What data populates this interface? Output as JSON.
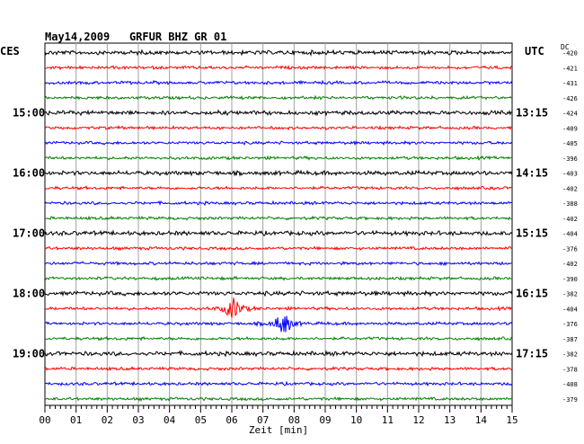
{
  "header": {
    "date": "May14,2009",
    "station": "GRFUR BHZ GR 01"
  },
  "left_tz": "CES",
  "right_tz": "UTC",
  "dc_label": "DC",
  "chart_data": {
    "type": "line",
    "title": "May14,2009   GRFUR BHZ GR 01",
    "xlabel": "Zeit [min]",
    "x_ticks": [
      "00",
      "01",
      "02",
      "03",
      "04",
      "05",
      "06",
      "07",
      "08",
      "09",
      "10",
      "11",
      "12",
      "13",
      "14",
      "15"
    ],
    "xlim": [
      0,
      15
    ],
    "grid": true,
    "trace_colors": [
      "#000000",
      "#ff0000",
      "#0000ff",
      "#008000"
    ],
    "left_time_labels": [
      "15:00",
      "16:00",
      "17:00",
      "18:00",
      "19:00"
    ],
    "right_time_labels": [
      "13:15",
      "14:15",
      "15:15",
      "16:15",
      "17:15"
    ],
    "dc_offsets": [
      "-420",
      "-421",
      "-431",
      "-426",
      "-424",
      "-409",
      "-405",
      "-396",
      "-403",
      "-402",
      "-388",
      "-402",
      "-404",
      "-376",
      "-402",
      "-390",
      "-382",
      "-404",
      "-376",
      "-387",
      "-382",
      "-378",
      "-408",
      "-379"
    ],
    "events": [
      {
        "trace": 17,
        "minute": 6.05,
        "note": "large burst"
      },
      {
        "trace": 18,
        "minute": 7.65,
        "note": "large burst"
      }
    ]
  }
}
